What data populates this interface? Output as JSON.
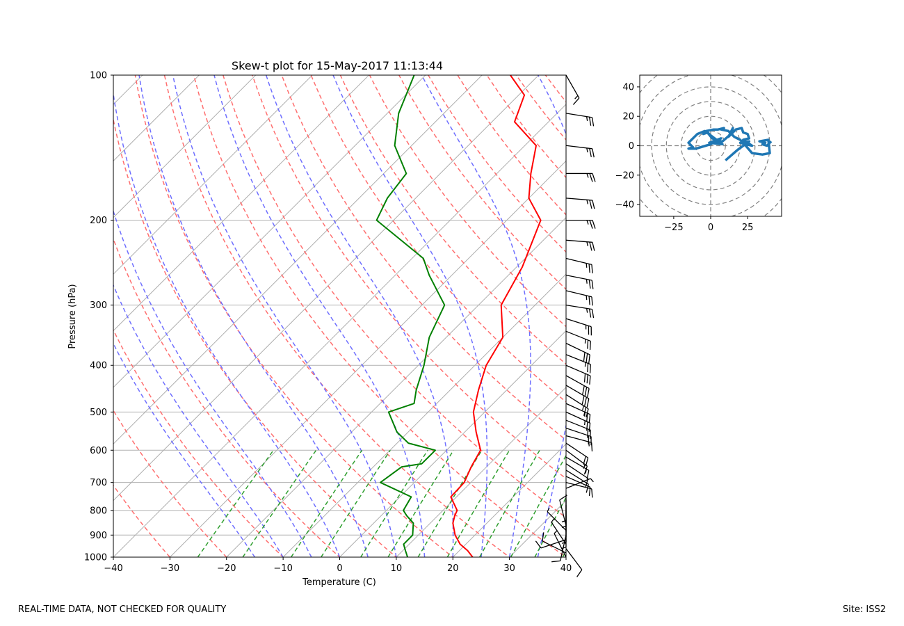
{
  "footer": {
    "left": "REAL-TIME DATA, NOT CHECKED FOR QUALITY",
    "right": "Site: ISS2"
  },
  "colors": {
    "temperature": "#ff0000",
    "dewpoint": "#008000",
    "dry_adiabat": "#ff6f6f",
    "moist_adiabat": "#6f6fff",
    "mixing_ratio": "#2f9f2f",
    "isotherm": "#b0b0b0",
    "hodograph": "#1f77b4"
  },
  "chart_data": [
    {
      "type": "line",
      "kind": "skew-t",
      "title": "Skew-t plot for 15-May-2017 11:13:44",
      "xlabel": "Temperature (C)",
      "ylabel": "Pressure (hPa)",
      "xlim": [
        -40,
        40
      ],
      "ylim": [
        1000,
        100
      ],
      "yscale": "log",
      "xticks": [
        -40,
        -30,
        -20,
        -10,
        0,
        10,
        20,
        30,
        40
      ],
      "yticks": [
        100,
        200,
        300,
        400,
        500,
        600,
        700,
        800,
        900,
        1000
      ],
      "grid": true,
      "series": [
        {
          "key": "temperature",
          "x": [
            23.5,
            21.5,
            19.0,
            16.5,
            14.0,
            13.0,
            12.5,
            9.0,
            8.8,
            7.3,
            6.0,
            2.0,
            -2.0,
            -5.0,
            -8.0,
            -10.0,
            -16.0,
            -19.0,
            -24.0,
            -30.0,
            -34.0,
            -38.0,
            -46.0,
            -49.0,
            -55.0
          ],
          "y": [
            1000,
            970,
            940,
            900,
            850,
            820,
            800,
            750,
            700,
            650,
            600,
            550,
            500,
            450,
            400,
            350,
            300,
            250,
            200,
            180,
            160,
            140,
            125,
            110,
            100
          ]
        },
        {
          "key": "dewpoint",
          "x": [
            12.0,
            10.5,
            9.0,
            9.0,
            7.0,
            4.5,
            3.0,
            2.0,
            -6.0,
            -5.0,
            -2.0,
            -2.0,
            -8.0,
            -12.0,
            -17.0,
            -14.0,
            -16.0,
            -19.0,
            -23.0,
            -26.0,
            -34.0,
            -38.0,
            -53.0,
            -55.0,
            -56.0,
            -63.0,
            -68.0,
            -72.0
          ],
          "y": [
            1000,
            970,
            940,
            900,
            850,
            820,
            800,
            750,
            700,
            650,
            640,
            600,
            580,
            550,
            500,
            480,
            450,
            400,
            350,
            300,
            260,
            240,
            200,
            180,
            160,
            140,
            120,
            100
          ]
        }
      ],
      "wind_profile": {
        "pressure": [
          1000,
          980,
          960,
          940,
          920,
          900,
          880,
          860,
          840,
          820,
          800,
          780,
          760,
          740,
          720,
          700,
          680,
          660,
          640,
          620,
          600,
          580,
          560,
          540,
          520,
          500,
          480,
          460,
          440,
          420,
          400,
          380,
          360,
          340,
          320,
          300,
          280,
          260,
          240,
          220,
          200,
          180,
          160,
          140,
          120,
          100
        ],
        "u": [
          3,
          8,
          -6,
          4,
          9,
          2,
          5,
          2,
          0,
          0,
          0,
          0,
          0,
          0,
          -5,
          -8,
          -9,
          -8,
          -9,
          -12,
          -12,
          -15,
          -15,
          -18,
          -20,
          -22,
          -22,
          -22,
          -24,
          -25,
          -28,
          -25,
          -25,
          -25,
          -25,
          -25,
          -25,
          -25,
          -25,
          -25,
          -25,
          -25,
          -25,
          -25,
          -25,
          -8
        ],
        "v": [
          -6,
          -4,
          8,
          -6,
          3,
          9,
          -5,
          -8,
          4,
          3,
          2,
          2,
          3,
          4,
          -2,
          2,
          4,
          5,
          6,
          7,
          9,
          10,
          4,
          6,
          8,
          10,
          10,
          14,
          14,
          14,
          12,
          10,
          12,
          10,
          8,
          4,
          6,
          5,
          6,
          2,
          0,
          2,
          0,
          3,
          4,
          14
        ]
      }
    },
    {
      "type": "line",
      "kind": "hodograph",
      "xlim": [
        -48,
        48
      ],
      "ylim": [
        -48,
        48
      ],
      "xticks": [
        -25,
        0,
        25
      ],
      "yticks": [
        -40,
        -20,
        0,
        20,
        40
      ],
      "grid": true,
      "rings": [
        10,
        20,
        30,
        40,
        50,
        60
      ],
      "series": [
        {
          "key": "hodograph",
          "x": [
            10,
            18,
            26,
            20,
            28,
            22,
            26,
            25,
            22,
            21,
            17,
            14,
            15,
            12,
            16,
            8,
            4,
            7,
            -1,
            8,
            0,
            -2,
            -5,
            -4,
            -9,
            -15,
            -12,
            -15,
            -10,
            0,
            3,
            7,
            1,
            -3,
            2,
            5,
            9,
            7,
            12,
            16,
            20,
            22,
            28,
            35,
            40,
            39,
            33,
            37,
            35,
            38,
            41
          ],
          "y": [
            -10,
            -3,
            3,
            2,
            0,
            4,
            5,
            8,
            9,
            12,
            11,
            8,
            12,
            6,
            10,
            3,
            3,
            5,
            2,
            1,
            7,
            9,
            8,
            10,
            8,
            2,
            -1,
            -2,
            -2,
            1,
            3,
            3,
            5,
            10,
            11,
            11,
            12,
            11,
            10,
            6,
            4,
            2,
            -5,
            -6,
            -5,
            4,
            3,
            2,
            1,
            0,
            3
          ]
        }
      ]
    }
  ]
}
